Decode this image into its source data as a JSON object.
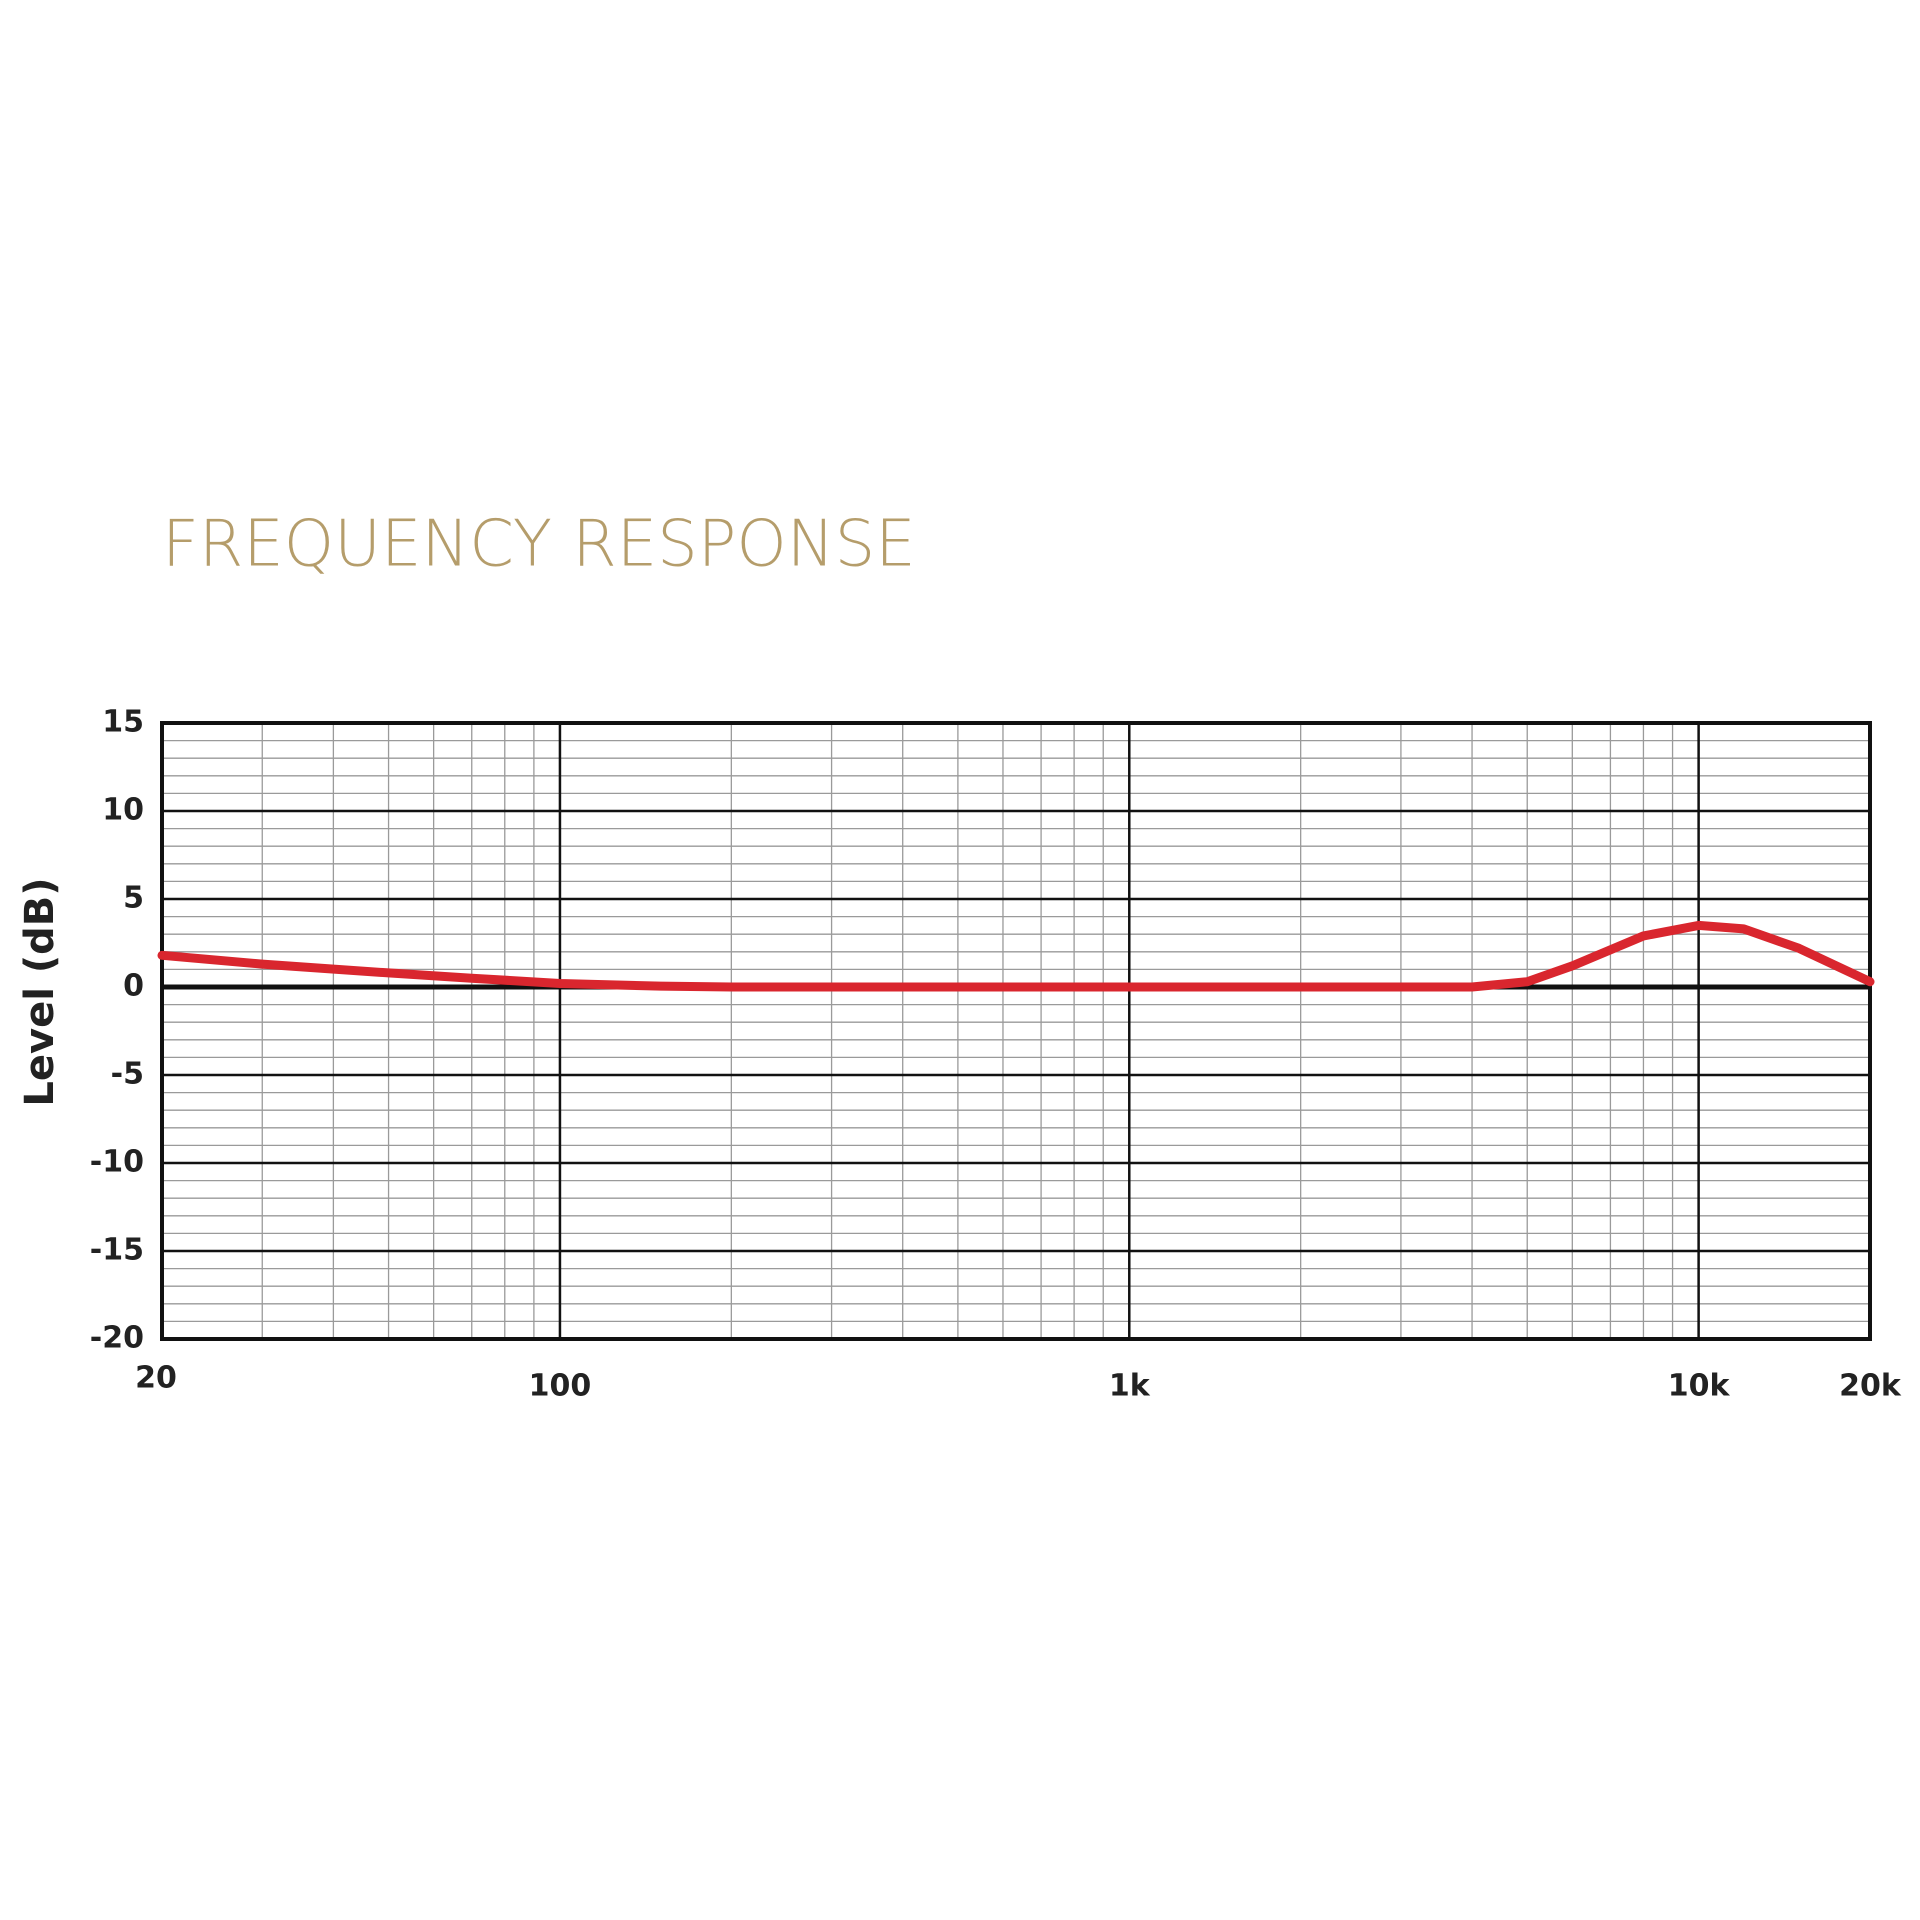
{
  "chart_data": {
    "type": "line",
    "title": "FREQUENCY RESPONSE",
    "y_label": "Level (dB)",
    "log_x": true,
    "grid": true,
    "xlim": [
      20,
      20000
    ],
    "xticks": [
      20,
      100,
      {
        "value": 1000,
        "label": "1k"
      },
      {
        "value": 10000,
        "label": "10k"
      },
      {
        "value": 20000,
        "label": "20k"
      }
    ],
    "ylim": [
      -20,
      15
    ],
    "yticks": [
      -20,
      -15,
      -10,
      -5,
      0,
      5,
      10,
      15
    ],
    "x": [
      20,
      30,
      50,
      70,
      100,
      150,
      200,
      500,
      1000,
      2000,
      4000,
      5000,
      6000,
      8000,
      10000,
      12000,
      15000,
      20000
    ],
    "series": [
      {
        "color": "#d9262e",
        "values": [
          1.8,
          1.3,
          0.8,
          0.5,
          0.2,
          0.05,
          0,
          0,
          0,
          0,
          0,
          0.3,
          1.2,
          2.9,
          3.5,
          3.3,
          2.2,
          0.3
        ]
      }
    ]
  }
}
